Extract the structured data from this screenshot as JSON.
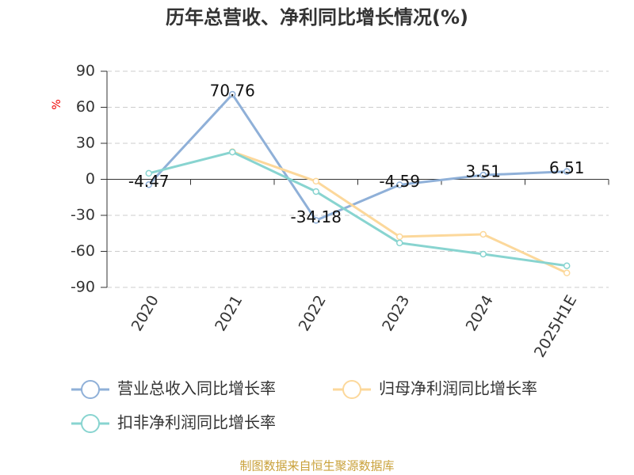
{
  "chart_data": {
    "type": "line",
    "title": "历年总营收、净利同比增长情况(%)",
    "y_label": "%",
    "source": "制图数据来自恒生聚源数据库",
    "categories": [
      "2020",
      "2021",
      "2022",
      "2023",
      "2024",
      "2025H1E"
    ],
    "series": [
      {
        "name": "营业总收入同比增长率",
        "color": "#8fb0d8",
        "values": [
          -4.47,
          70.76,
          -34.18,
          -4.59,
          3.51,
          6.51
        ],
        "show_labels": true
      },
      {
        "name": "归母净利润同比增长率",
        "color": "#fcd89b",
        "values": [
          null,
          23,
          -1.6,
          -47.8,
          -45.8,
          -78
        ]
      },
      {
        "name": "扣非净利润同比增长率",
        "color": "#88d4d0",
        "values": [
          5,
          22.7,
          -10.2,
          -53,
          -62.3,
          -72
        ]
      }
    ],
    "ylim": [
      -90,
      90
    ],
    "yticks": [
      -90,
      -60,
      -30,
      0,
      30,
      60,
      90
    ],
    "grid": true
  }
}
